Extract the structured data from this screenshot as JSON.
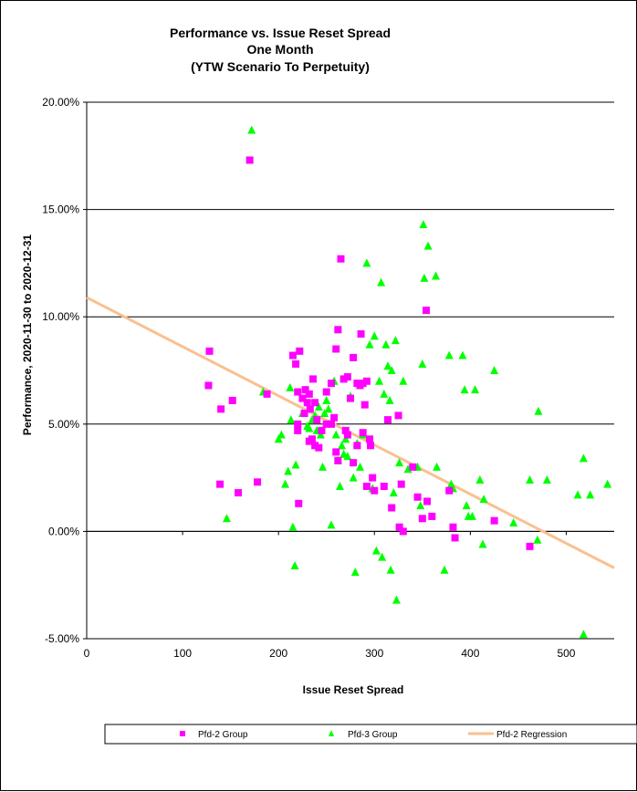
{
  "chart_data": {
    "type": "scatter",
    "title": [
      "Performance vs. Issue Reset Spread",
      "One Month",
      "(YTW Scenario To Perpetuity)"
    ],
    "xlabel": "Issue  Reset Spread",
    "ylabel": "Performance, 2020-11-30  to 2020-12-31",
    "xlim": [
      0,
      550
    ],
    "ylim": [
      -0.05,
      0.2
    ],
    "x_ticks": [
      0,
      100,
      200,
      300,
      400,
      500
    ],
    "x_tick_labels": [
      "0",
      "100",
      "200",
      "300",
      "400",
      "500"
    ],
    "y_ticks": [
      -0.05,
      0,
      0.05,
      0.1,
      0.15,
      0.2
    ],
    "y_tick_labels": [
      "-5.00%",
      "0.00%",
      "5.00%",
      "10.00%",
      "15.00%",
      "20.00%"
    ],
    "grid": "horizontal major",
    "legend": [
      "Pfd-2 Group",
      "Pfd-3 Group",
      "Pfd-2 Regression"
    ],
    "series": [
      {
        "name": "Pfd-2 Group",
        "marker": "square",
        "color": "#FF00FF",
        "points": [
          [
            170,
            0.173
          ],
          [
            128,
            0.084
          ],
          [
            127,
            0.068
          ],
          [
            140,
            0.057
          ],
          [
            152,
            0.061
          ],
          [
            139,
            0.022
          ],
          [
            158,
            0.018
          ],
          [
            178,
            0.023
          ],
          [
            188,
            0.064
          ],
          [
            215,
            0.082
          ],
          [
            218,
            0.078
          ],
          [
            222,
            0.084
          ],
          [
            220,
            0.065
          ],
          [
            228,
            0.066
          ],
          [
            225,
            0.062
          ],
          [
            230,
            0.06
          ],
          [
            232,
            0.064
          ],
          [
            233,
            0.057
          ],
          [
            227,
            0.055
          ],
          [
            220,
            0.05
          ],
          [
            220,
            0.047
          ],
          [
            236,
            0.071
          ],
          [
            238,
            0.06
          ],
          [
            240,
            0.052
          ],
          [
            245,
            0.047
          ],
          [
            250,
            0.05
          ],
          [
            235,
            0.043
          ],
          [
            238,
            0.04
          ],
          [
            242,
            0.039
          ],
          [
            232,
            0.042
          ],
          [
            221,
            0.013
          ],
          [
            250,
            0.065
          ],
          [
            255,
            0.069
          ],
          [
            258,
            0.053
          ],
          [
            262,
            0.094
          ],
          [
            260,
            0.085
          ],
          [
            265,
            0.127
          ],
          [
            268,
            0.071
          ],
          [
            272,
            0.072
          ],
          [
            275,
            0.062
          ],
          [
            278,
            0.081
          ],
          [
            282,
            0.069
          ],
          [
            285,
            0.068
          ],
          [
            288,
            0.069
          ],
          [
            292,
            0.07
          ],
          [
            286,
            0.092
          ],
          [
            290,
            0.059
          ],
          [
            255,
            0.05
          ],
          [
            260,
            0.037
          ],
          [
            262,
            0.033
          ],
          [
            270,
            0.047
          ],
          [
            272,
            0.045
          ],
          [
            278,
            0.032
          ],
          [
            282,
            0.04
          ],
          [
            288,
            0.046
          ],
          [
            295,
            0.043
          ],
          [
            296,
            0.04
          ],
          [
            292,
            0.021
          ],
          [
            298,
            0.025
          ],
          [
            300,
            0.019
          ],
          [
            310,
            0.021
          ],
          [
            314,
            0.052
          ],
          [
            318,
            0.011
          ],
          [
            325,
            0.054
          ],
          [
            328,
            0.022
          ],
          [
            326,
            0.002
          ],
          [
            330,
            0.0
          ],
          [
            340,
            0.03
          ],
          [
            345,
            0.016
          ],
          [
            350,
            0.006
          ],
          [
            355,
            0.014
          ],
          [
            354,
            0.103
          ],
          [
            360,
            0.007
          ],
          [
            378,
            0.019
          ],
          [
            382,
            0.002
          ],
          [
            384,
            -0.003
          ],
          [
            425,
            0.005
          ],
          [
            462,
            -0.007
          ]
        ]
      },
      {
        "name": "Pfd-3 Group",
        "marker": "triangle",
        "color": "#00FF00",
        "points": [
          [
            172,
            0.187
          ],
          [
            184,
            0.065
          ],
          [
            146,
            0.006
          ],
          [
            200,
            0.043
          ],
          [
            203,
            0.045
          ],
          [
            207,
            0.022
          ],
          [
            210,
            0.028
          ],
          [
            212,
            0.067
          ],
          [
            213,
            0.052
          ],
          [
            215,
            0.002
          ],
          [
            217,
            -0.016
          ],
          [
            218,
            0.031
          ],
          [
            225,
            0.055
          ],
          [
            230,
            0.049
          ],
          [
            232,
            0.048
          ],
          [
            235,
            0.052
          ],
          [
            238,
            0.054
          ],
          [
            240,
            0.047
          ],
          [
            242,
            0.058
          ],
          [
            244,
            0.045
          ],
          [
            246,
            0.03
          ],
          [
            248,
            0.055
          ],
          [
            250,
            0.061
          ],
          [
            252,
            0.057
          ],
          [
            255,
            0.003
          ],
          [
            258,
            0.07
          ],
          [
            260,
            0.045
          ],
          [
            262,
            0.033
          ],
          [
            264,
            0.021
          ],
          [
            266,
            0.04
          ],
          [
            268,
            0.036
          ],
          [
            270,
            0.043
          ],
          [
            272,
            0.035
          ],
          [
            275,
            0.063
          ],
          [
            278,
            0.025
          ],
          [
            280,
            -0.019
          ],
          [
            282,
            0.041
          ],
          [
            285,
            0.03
          ],
          [
            288,
            0.045
          ],
          [
            292,
            0.125
          ],
          [
            295,
            0.087
          ],
          [
            298,
            0.02
          ],
          [
            300,
            0.091
          ],
          [
            302,
            -0.009
          ],
          [
            305,
            0.07
          ],
          [
            307,
            0.116
          ],
          [
            308,
            -0.012
          ],
          [
            310,
            0.064
          ],
          [
            312,
            0.087
          ],
          [
            314,
            0.077
          ],
          [
            316,
            0.061
          ],
          [
            317,
            -0.018
          ],
          [
            318,
            0.075
          ],
          [
            320,
            0.018
          ],
          [
            322,
            0.089
          ],
          [
            323,
            -0.032
          ],
          [
            326,
            0.032
          ],
          [
            330,
            0.07
          ],
          [
            335,
            0.029
          ],
          [
            345,
            0.03
          ],
          [
            348,
            0.012
          ],
          [
            350,
            0.078
          ],
          [
            351,
            0.143
          ],
          [
            352,
            0.118
          ],
          [
            356,
            0.133
          ],
          [
            364,
            0.119
          ],
          [
            365,
            0.03
          ],
          [
            373,
            -0.018
          ],
          [
            378,
            0.082
          ],
          [
            380,
            0.022
          ],
          [
            382,
            0.02
          ],
          [
            392,
            0.082
          ],
          [
            394,
            0.066
          ],
          [
            396,
            0.012
          ],
          [
            398,
            0.007
          ],
          [
            402,
            0.007
          ],
          [
            405,
            0.066
          ],
          [
            410,
            0.024
          ],
          [
            414,
            0.015
          ],
          [
            413,
            -0.006
          ],
          [
            425,
            0.075
          ],
          [
            445,
            0.004
          ],
          [
            462,
            0.024
          ],
          [
            470,
            -0.004
          ],
          [
            471,
            0.056
          ],
          [
            480,
            0.024
          ],
          [
            512,
            0.017
          ],
          [
            518,
            0.034
          ],
          [
            525,
            0.017
          ],
          [
            518,
            -0.048
          ],
          [
            543,
            0.022
          ]
        ]
      },
      {
        "name": "Pfd-2 Regression",
        "type": "line",
        "color": "#FAC090",
        "x": [
          0,
          550
        ],
        "y": [
          0.109,
          -0.017
        ]
      }
    ]
  }
}
